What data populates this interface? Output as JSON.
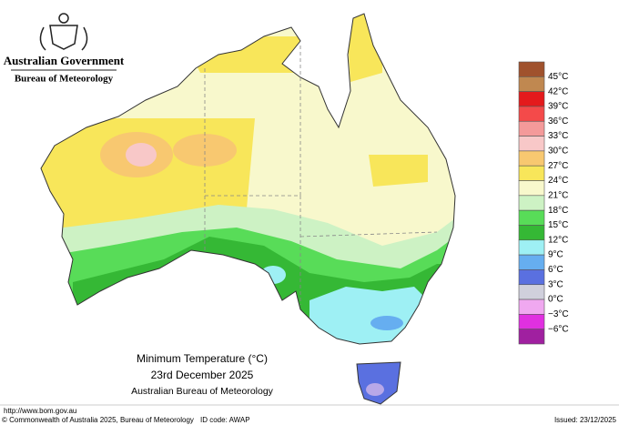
{
  "header": {
    "government": "Australian Government",
    "bureau": "Bureau of Meteorology"
  },
  "map": {
    "title": "Minimum Temperature (°C)",
    "date": "23rd December 2025",
    "source": "Australian Bureau of Meteorology"
  },
  "legend": {
    "labels": [
      "45°C",
      "42°C",
      "39°C",
      "36°C",
      "33°C",
      "30°C",
      "27°C",
      "24°C",
      "21°C",
      "18°C",
      "15°C",
      "12°C",
      "9°C",
      "6°C",
      "3°C",
      "0°C",
      "−3°C",
      "−6°C"
    ],
    "colors": [
      "#a0522d",
      "#c08850",
      "#e41a1c",
      "#f44a4a",
      "#f49a9a",
      "#f8c8c8",
      "#f8c870",
      "#f8e65a",
      "#f8f8cc",
      "#cdf2c4",
      "#58dc58",
      "#35b835",
      "#9ef0f4",
      "#66aef0",
      "#5a70e0",
      "#d0d0dc",
      "#f0a8f0",
      "#e030e0",
      "#a020a0"
    ]
  },
  "footer": {
    "url": "http://www.bom.gov.au",
    "copyright": "© Commonwealth of Australia 2025, Bureau of Meteorology",
    "id_code": "ID code: AWAP",
    "issued": "Issued: 23/12/2025"
  }
}
